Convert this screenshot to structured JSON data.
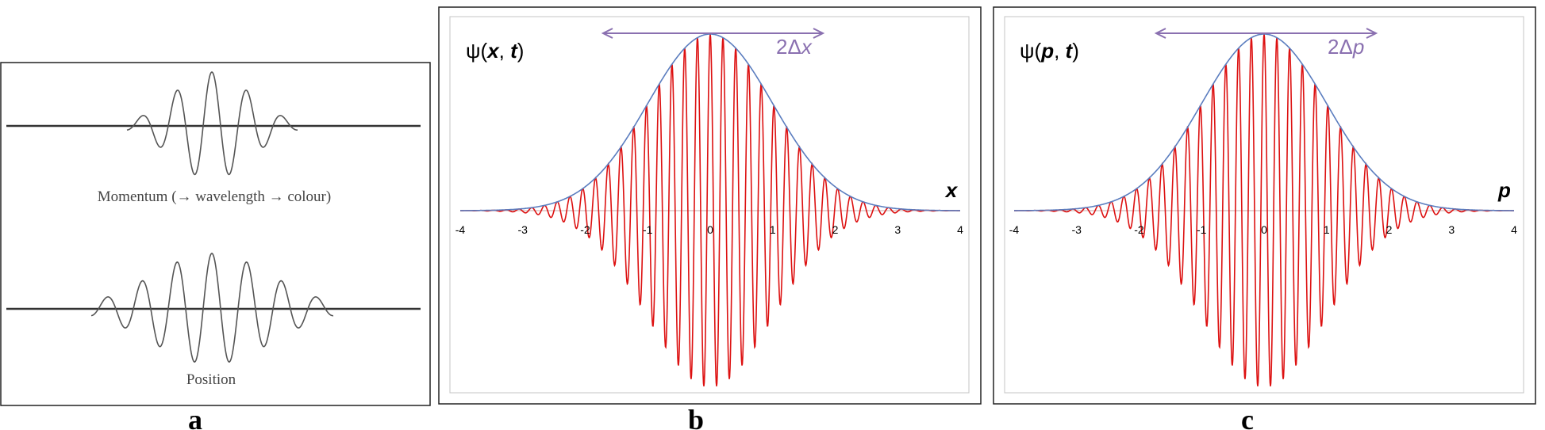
{
  "panel_a": {
    "caption_top": "Momentum (→ wavelength → colour)",
    "caption_bottom": "Position",
    "letter": "a"
  },
  "panel_b": {
    "ylabel_prefix": "ψ(",
    "ylabel_var": "x",
    "ylabel_mid": ", ",
    "ylabel_t": "t",
    "ylabel_suffix": ")",
    "arrow_label_2": "2Δ",
    "arrow_label_var": "x",
    "axis_label": "x",
    "letter": "b"
  },
  "panel_c": {
    "ylabel_prefix": "ψ(",
    "ylabel_var": "p",
    "ylabel_mid": ", ",
    "ylabel_t": "t",
    "ylabel_suffix": ")",
    "arrow_label_2": "2Δ",
    "arrow_label_var": "p",
    "axis_label": "p",
    "letter": "c"
  },
  "ticks": [
    "-4",
    "-3",
    "-2",
    "-1",
    "0",
    "1",
    "2",
    "3",
    "4"
  ],
  "colors": {
    "carrier": "#dd1111",
    "envelope": "#5b7dbf",
    "arrow": "#8a70b0",
    "frame": "#222222",
    "inner_frame": "#bfbfbf",
    "axis": "#c8a8a8"
  }
}
